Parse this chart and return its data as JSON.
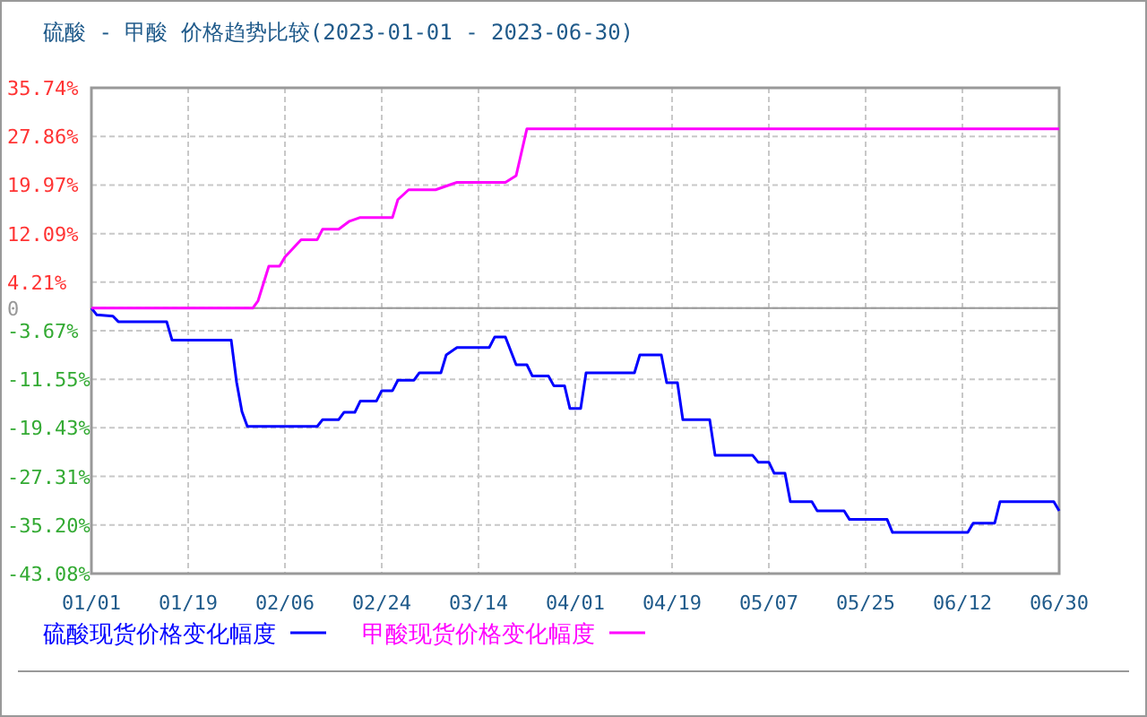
{
  "chart_data": {
    "type": "line",
    "title": "硫酸 - 甲酸 价格趋势比较(2023-01-01 - 2023-06-30)",
    "xlim": [
      "2023-01-01",
      "2023-06-30"
    ],
    "xticks": [
      {
        "value": "2023-01-01",
        "label": "01/01"
      },
      {
        "value": "2023-01-19",
        "label": "01/19"
      },
      {
        "value": "2023-02-06",
        "label": "02/06"
      },
      {
        "value": "2023-02-24",
        "label": "02/24"
      },
      {
        "value": "2023-03-14",
        "label": "03/14"
      },
      {
        "value": "2023-04-01",
        "label": "04/01"
      },
      {
        "value": "2023-04-19",
        "label": "04/19"
      },
      {
        "value": "2023-05-07",
        "label": "05/07"
      },
      {
        "value": "2023-05-25",
        "label": "05/25"
      },
      {
        "value": "2023-06-12",
        "label": "06/12"
      },
      {
        "value": "2023-06-30",
        "label": "06/30"
      }
    ],
    "ylim": [
      -43.08,
      35.74
    ],
    "yticks": [
      {
        "value": 35.74,
        "label": "35.74%"
      },
      {
        "value": 27.86,
        "label": "27.86%"
      },
      {
        "value": 19.97,
        "label": "19.97%"
      },
      {
        "value": 12.09,
        "label": "12.09%"
      },
      {
        "value": 4.21,
        "label": "4.21%"
      },
      0,
      {
        "value": -3.67,
        "label": "-3.67%"
      },
      {
        "value": -11.55,
        "label": "-11.55%"
      },
      {
        "value": -19.43,
        "label": "-19.43%"
      },
      {
        "value": -27.31,
        "label": "-27.31%"
      },
      {
        "value": -35.2,
        "label": "-35.20%"
      },
      {
        "value": -43.08,
        "label": "-43.08%"
      }
    ],
    "grid": true,
    "legend": "bottom",
    "ref_lines": [
      {
        "axis": "y",
        "value": 0,
        "color": "#999999"
      }
    ],
    "series": [
      {
        "name": "硫酸现货价格变化幅度",
        "color": "#0000ff",
        "x": [
          "2023-01-01",
          "2023-01-02",
          "2023-01-05",
          "2023-01-06",
          "2023-01-15",
          "2023-01-16",
          "2023-01-27",
          "2023-01-28",
          "2023-01-29",
          "2023-01-30",
          "2023-02-12",
          "2023-02-13",
          "2023-02-16",
          "2023-02-17",
          "2023-02-19",
          "2023-02-20",
          "2023-02-23",
          "2023-02-24",
          "2023-02-26",
          "2023-02-27",
          "2023-03-02",
          "2023-03-03",
          "2023-03-07",
          "2023-03-08",
          "2023-03-10",
          "2023-03-16",
          "2023-03-17",
          "2023-03-19",
          "2023-03-21",
          "2023-03-23",
          "2023-03-24",
          "2023-03-27",
          "2023-03-28",
          "2023-03-30",
          "2023-03-31",
          "2023-04-02",
          "2023-04-03",
          "2023-04-12",
          "2023-04-13",
          "2023-04-17",
          "2023-04-18",
          "2023-04-20",
          "2023-04-21",
          "2023-04-26",
          "2023-04-27",
          "2023-05-04",
          "2023-05-05",
          "2023-05-07",
          "2023-05-08",
          "2023-05-10",
          "2023-05-11",
          "2023-05-15",
          "2023-05-16",
          "2023-05-21",
          "2023-05-22",
          "2023-05-29",
          "2023-05-30",
          "2023-06-13",
          "2023-06-14",
          "2023-06-18",
          "2023-06-19",
          "2023-06-29",
          "2023-06-30"
        ],
        "values": [
          0,
          -1.1,
          -1.3,
          -2.2,
          -2.2,
          -5.2,
          -5.2,
          -12.0,
          -16.8,
          -19.2,
          -19.2,
          -18.1,
          -18.1,
          -16.9,
          -16.9,
          -15.1,
          -15.1,
          -13.4,
          -13.4,
          -11.7,
          -11.7,
          -10.5,
          -10.5,
          -7.6,
          -6.4,
          -6.4,
          -4.7,
          -4.7,
          -9.2,
          -9.2,
          -11.0,
          -11.0,
          -12.6,
          -12.6,
          -16.3,
          -16.3,
          -10.5,
          -10.5,
          -7.6,
          -7.6,
          -12.1,
          -12.1,
          -18.1,
          -18.1,
          -23.9,
          -23.9,
          -25.0,
          -25.0,
          -26.8,
          -26.8,
          -31.4,
          -31.4,
          -32.9,
          -32.9,
          -34.3,
          -34.3,
          -36.4,
          -36.4,
          -34.9,
          -34.9,
          -31.4,
          -31.4,
          -32.9
        ]
      },
      {
        "name": "甲酸现货价格变化幅度",
        "color": "#ff00ff",
        "x": [
          "2023-01-01",
          "2023-01-31",
          "2023-02-01",
          "2023-02-03",
          "2023-02-05",
          "2023-02-06",
          "2023-02-09",
          "2023-02-12",
          "2023-02-13",
          "2023-02-16",
          "2023-02-18",
          "2023-02-20",
          "2023-02-26",
          "2023-02-27",
          "2023-03-01",
          "2023-03-06",
          "2023-03-09",
          "2023-03-10",
          "2023-03-19",
          "2023-03-21",
          "2023-03-23",
          "2023-06-30"
        ],
        "values": [
          0,
          0,
          1.2,
          6.8,
          6.8,
          8.3,
          11.1,
          11.1,
          12.8,
          12.8,
          14.1,
          14.7,
          14.7,
          17.6,
          19.2,
          19.2,
          20.1,
          20.4,
          20.4,
          21.5,
          29.1,
          29.1
        ]
      }
    ]
  }
}
